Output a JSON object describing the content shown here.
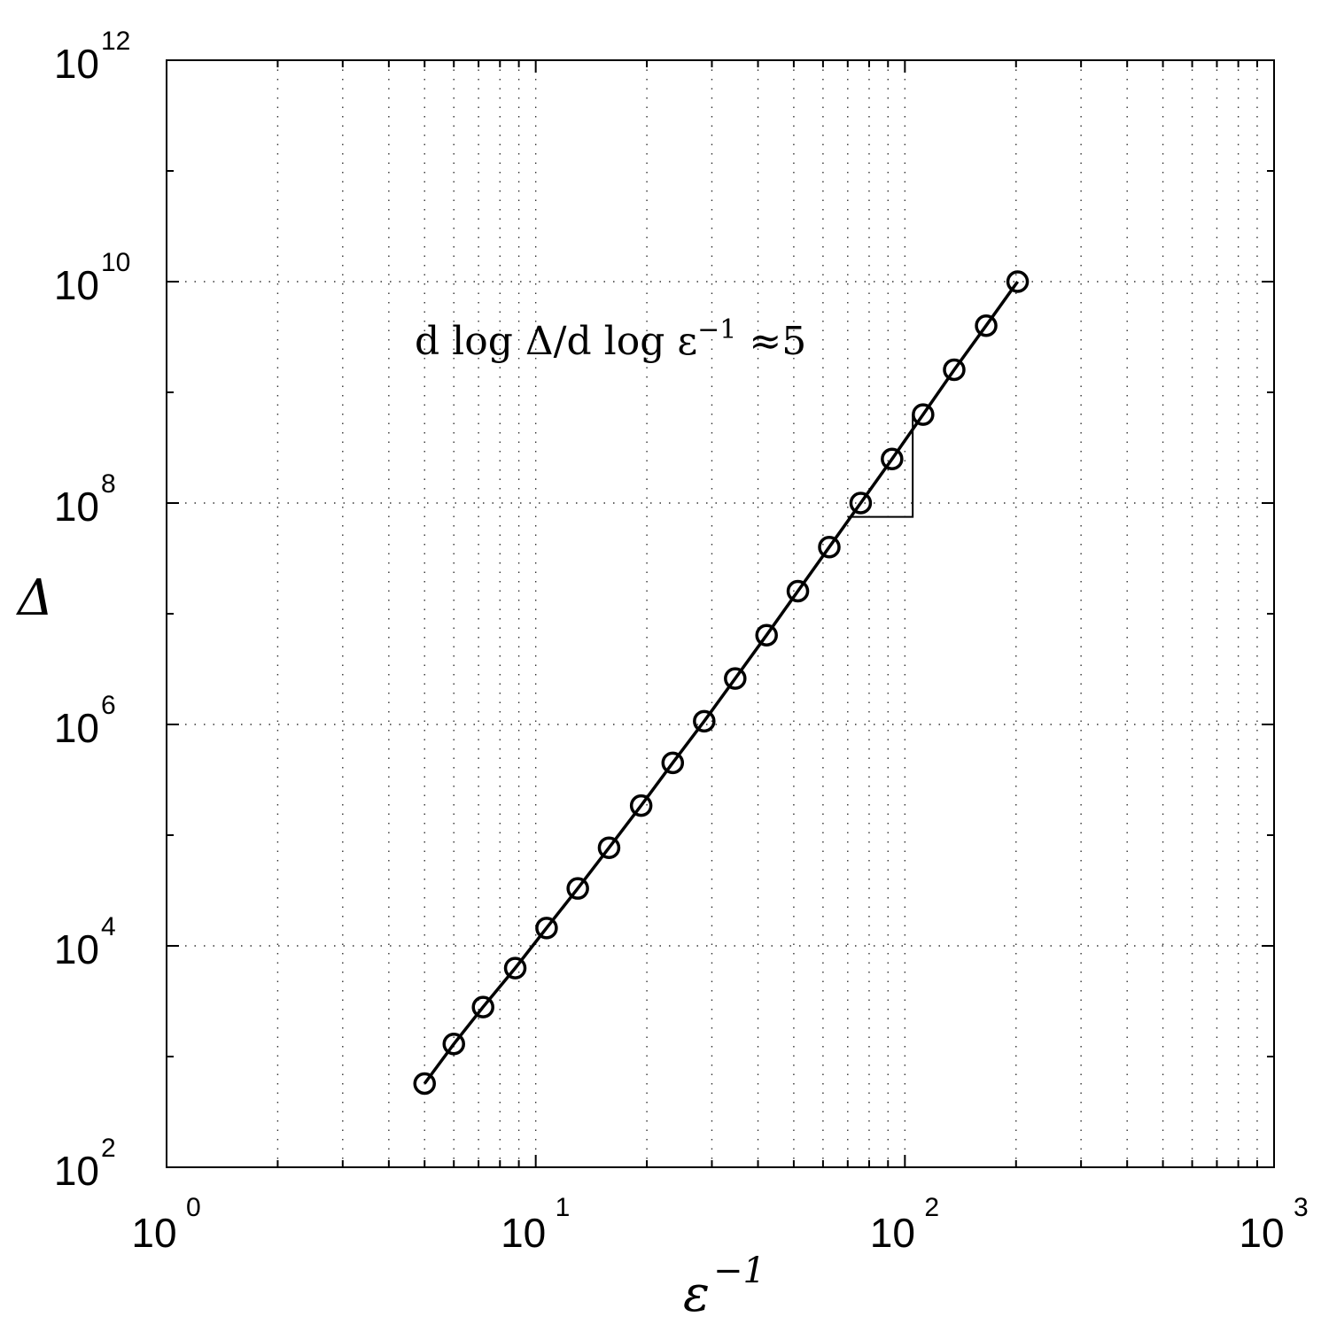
{
  "chart_data": {
    "type": "line",
    "title": "",
    "xlabel": "ε",
    "xlabel_superscript": "−1",
    "ylabel": "Δ",
    "xscale": "log",
    "yscale": "log",
    "xlim": [
      1,
      1000
    ],
    "ylim": [
      100,
      1000000000000
    ],
    "grid": true,
    "grid_style": "dotted",
    "x_ticks": [
      {
        "base": "10",
        "exp": "0",
        "value": 1
      },
      {
        "base": "10",
        "exp": "1",
        "value": 10
      },
      {
        "base": "10",
        "exp": "2",
        "value": 100
      },
      {
        "base": "10",
        "exp": "3",
        "value": 1000
      }
    ],
    "y_ticks": [
      {
        "base": "10",
        "exp": "2",
        "value": 100
      },
      {
        "base": "10",
        "exp": "4",
        "value": 10000
      },
      {
        "base": "10",
        "exp": "6",
        "value": 1000000
      },
      {
        "base": "10",
        "exp": "8",
        "value": 100000000
      },
      {
        "base": "10",
        "exp": "10",
        "value": 10000000000
      },
      {
        "base": "10",
        "exp": "12",
        "value": 1000000000000
      }
    ],
    "series": [
      {
        "marker": "circle",
        "color": "#000000",
        "x": [
          5,
          6,
          7.2,
          8.8,
          10.7,
          13,
          15.8,
          19.3,
          23.5,
          28.6,
          34.7,
          42.2,
          51.3,
          62.4,
          75.9,
          92.3,
          112,
          136,
          166,
          202
        ],
        "y": [
          570,
          1300,
          2800,
          6300,
          14500,
          33000,
          77000,
          185000,
          450000,
          1070000,
          2600000,
          6400000,
          16000000,
          40000000,
          100000000,
          250000000,
          630000000,
          1600000000,
          4000000000,
          10000000000
        ]
      }
    ],
    "slope_triangle": {
      "x_start": 70,
      "x_end": 105,
      "y_start": 75000000,
      "y_end": 630000000
    },
    "annotation": {
      "text": "d log Δ/d log ε",
      "superscript": "−1",
      "suffix": " ≈5",
      "x": 4.7,
      "y": 2200000000
    }
  }
}
